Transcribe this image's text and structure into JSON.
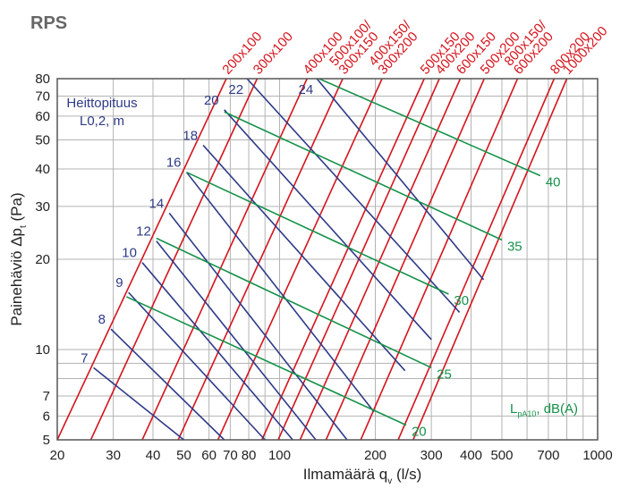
{
  "chart_data": {
    "type": "line",
    "title": "RPS",
    "xlabel": "Ilmamäärä q_v (l/s)",
    "xlabel_main": "Ilmamäärä q",
    "xlabel_sub": "v",
    "xlabel_tail": " (l/s)",
    "ylabel_main": "Painehäviö Δp",
    "ylabel_sub": "t",
    "ylabel_tail": " (Pa)",
    "x_scale": "log",
    "y_scale": "log",
    "xlim": [
      20,
      1000
    ],
    "ylim": [
      5,
      80
    ],
    "x_ticks": [
      20,
      30,
      40,
      50,
      60,
      70,
      80,
      100,
      200,
      300,
      400,
      500,
      700,
      1000
    ],
    "x_tick_labels": [
      "20",
      "30",
      "40",
      "50",
      "60",
      "70",
      "80",
      "100",
      "200",
      "300",
      "400",
      "500",
      "700",
      "1000"
    ],
    "y_ticks": [
      5,
      6,
      7,
      10,
      20,
      30,
      40,
      50,
      60,
      70,
      80
    ],
    "y_tick_labels": [
      "5",
      "6",
      "7",
      "10",
      "20",
      "30",
      "40",
      "50",
      "60",
      "70",
      "80"
    ],
    "x_gridlines": [
      20,
      30,
      40,
      50,
      60,
      70,
      80,
      90,
      100,
      200,
      300,
      400,
      500,
      600,
      700,
      800,
      900,
      1000
    ],
    "y_gridlines": [
      5,
      6,
      7,
      8,
      9,
      10,
      20,
      30,
      40,
      50,
      60,
      70,
      80
    ],
    "grid": true,
    "duct_sizes": {
      "color": "#d4141c",
      "lines": [
        {
          "label": "200x100",
          "points": [
            [
              20,
              5
            ],
            [
              68,
              80
            ]
          ]
        },
        {
          "label": "300x100",
          "points": [
            [
              25.5,
              5
            ],
            [
              85,
              80
            ]
          ]
        },
        {
          "label": "400x100",
          "points": [
            [
              37,
              5
            ],
            [
              122,
              80
            ]
          ]
        },
        {
          "label": "500x100/ 300x150",
          "points": [
            [
              48,
              5
            ],
            [
              158,
              80
            ]
          ]
        },
        {
          "label": "400x150/ 300x200",
          "points": [
            [
              64,
              5
            ],
            [
              210,
              80
            ]
          ]
        },
        {
          "label": "500x150",
          "points": [
            [
              88,
              5
            ],
            [
              285,
              80
            ]
          ]
        },
        {
          "label": "400x200",
          "points": [
            [
              99,
              5
            ],
            [
              318,
              80
            ]
          ]
        },
        {
          "label": "600x150",
          "points": [
            [
              116,
              5
            ],
            [
              370,
              80
            ]
          ]
        },
        {
          "label": "500x200",
          "points": [
            [
              140,
              5
            ],
            [
              440,
              80
            ]
          ]
        },
        {
          "label": "800x150/ 600x200",
          "points": [
            [
              180,
              5
            ],
            [
              560,
              80
            ]
          ]
        },
        {
          "label": "800x200",
          "points": [
            [
              236,
              5
            ],
            [
              730,
              80
            ]
          ]
        },
        {
          "label": "1000x200",
          "points": [
            [
              263,
              5
            ],
            [
              800,
              80
            ]
          ]
        }
      ]
    },
    "throw_length": {
      "label_line1": "Heittopituus",
      "label_line2": "L0,2, m",
      "color": "#2e3a87",
      "lines": [
        {
          "label": "7",
          "points": [
            [
              26,
              8.7
            ],
            [
              50,
              5
            ]
          ]
        },
        {
          "label": "8",
          "points": [
            [
              29.5,
              11.7
            ],
            [
              67,
              5
            ]
          ]
        },
        {
          "label": "9",
          "points": [
            [
              33.5,
              15.5
            ],
            [
              90,
              5
            ]
          ]
        },
        {
          "label": "10",
          "points": [
            [
              37,
              19.5
            ],
            [
              110,
              5
            ]
          ]
        },
        {
          "label": "12",
          "points": [
            [
              41,
              23
            ],
            [
              130,
              5
            ]
          ]
        },
        {
          "label": "14",
          "points": [
            [
              45,
              28.5
            ],
            [
              163,
              5
            ]
          ]
        },
        {
          "label": "16",
          "points": [
            [
              51,
              39
            ],
            [
              198,
              6.2
            ]
          ]
        },
        {
          "label": "18",
          "points": [
            [
              57.5,
              48
            ],
            [
              248,
              8.5
            ]
          ]
        },
        {
          "label": "20",
          "points": [
            [
              67,
              63
            ],
            [
              300,
              10.8
            ]
          ]
        },
        {
          "label": "22",
          "points": [
            [
              79,
              80
            ],
            [
              368,
              13.3
            ]
          ]
        },
        {
          "label": "24",
          "points": [
            [
              131,
              80
            ],
            [
              438,
              17.1
            ]
          ]
        }
      ]
    },
    "sound_level": {
      "label_main": "L",
      "label_sub": "pA10",
      "label_tail": ", dB(A)",
      "color": "#15924a",
      "lines": [
        {
          "label": "20",
          "points": [
            [
              33,
              15
            ],
            [
              250,
              5.6
            ]
          ]
        },
        {
          "label": "25",
          "points": [
            [
              41,
              23.5
            ],
            [
              300,
              8.7
            ]
          ]
        },
        {
          "label": "30",
          "points": [
            [
              51,
              39
            ],
            [
              340,
              15.3
            ]
          ]
        },
        {
          "label": "35",
          "points": [
            [
              67,
              62
            ],
            [
              500,
              23.2
            ]
          ]
        },
        {
          "label": "40",
          "points": [
            [
              133,
              80
            ],
            [
              660,
              38
            ]
          ]
        }
      ]
    }
  }
}
